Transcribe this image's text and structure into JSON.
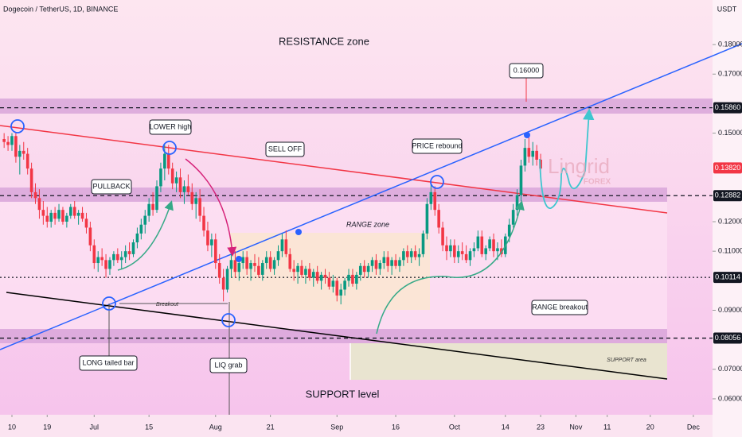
{
  "chart_data": {
    "type": "candlestick",
    "title": "Dogecoin / TetherUS, 1D, BINANCE",
    "currency": "USDT",
    "up_color": "#089981",
    "down_color": "#f23645",
    "xlim": [
      -3.05,
      178.9
    ],
    "ylim": [
      0.0546,
      0.1951
    ],
    "xticks": [
      {
        "value": 0,
        "label": "10"
      },
      {
        "value": 9,
        "label": "19"
      },
      {
        "value": 21,
        "label": "Jul"
      },
      {
        "value": 35,
        "label": "15"
      },
      {
        "value": 52,
        "label": "Aug"
      },
      {
        "value": 66,
        "label": "21"
      },
      {
        "value": 83,
        "label": "Sep"
      },
      {
        "value": 98,
        "label": "16"
      },
      {
        "value": 113,
        "label": "Oct"
      },
      {
        "value": 126,
        "label": "14"
      },
      {
        "value": 135,
        "label": "23"
      },
      {
        "value": 144,
        "label": "Nov"
      },
      {
        "value": 152,
        "label": "11"
      },
      {
        "value": 163,
        "label": "20"
      },
      {
        "value": 174,
        "label": "Dec"
      }
    ],
    "yticks": [
      {
        "value": 0.18,
        "label": "0.18000"
      },
      {
        "value": 0.17,
        "label": "0.17000"
      },
      {
        "value": 0.15,
        "label": "0.15000"
      },
      {
        "value": 0.12,
        "label": "0.12000"
      },
      {
        "value": 0.11,
        "label": "0.11000"
      },
      {
        "value": 0.09,
        "label": "0.09000"
      },
      {
        "value": 0.07,
        "label": "0.07000"
      },
      {
        "value": 0.06,
        "label": "0.06000"
      }
    ],
    "levels": [
      {
        "value": 0.1586,
        "label": "0.15860",
        "color": "#131722",
        "style": "dashed"
      },
      {
        "value": 0.1382,
        "label": "0.13820",
        "color": "#f23645",
        "style": "none"
      },
      {
        "value": 0.12882,
        "label": "0.12882",
        "color": "#131722",
        "style": "dashed"
      },
      {
        "value": 0.10114,
        "label": "0.10114",
        "color": "#131722",
        "style": "dotted"
      },
      {
        "value": 0.08056,
        "label": "0.08056",
        "color": "#131722",
        "style": "dashed"
      }
    ],
    "x": [
      -2,
      -1,
      0,
      1,
      2,
      3,
      4,
      5,
      6,
      7,
      8,
      9,
      10,
      11,
      12,
      13,
      14,
      15,
      16,
      17,
      18,
      19,
      20,
      21,
      22,
      23,
      24,
      25,
      26,
      27,
      28,
      29,
      30,
      31,
      32,
      33,
      34,
      35,
      36,
      37,
      38,
      39,
      40,
      41,
      42,
      43,
      44,
      45,
      46,
      47,
      48,
      49,
      50,
      51,
      52,
      53,
      54,
      55,
      56,
      57,
      58,
      59,
      60,
      61,
      62,
      63,
      64,
      65,
      66,
      67,
      68,
      69,
      70,
      71,
      72,
      73,
      74,
      75,
      76,
      77,
      78,
      79,
      80,
      81,
      82,
      83,
      84,
      85,
      86,
      87,
      88,
      89,
      90,
      91,
      92,
      93,
      94,
      95,
      96,
      97,
      98,
      99,
      100,
      101,
      102,
      103,
      104,
      105,
      106,
      107,
      108,
      109,
      110,
      111,
      112,
      113,
      114,
      115,
      116,
      117,
      118,
      119,
      120,
      121,
      122,
      123,
      124,
      125,
      126,
      127,
      128,
      129,
      130,
      131,
      132,
      133,
      134,
      135
    ],
    "candles": [
      [
        0.148,
        0.15,
        0.145,
        0.147
      ],
      [
        0.147,
        0.149,
        0.144,
        0.146
      ],
      [
        0.146,
        0.15,
        0.144,
        0.149
      ],
      [
        0.149,
        0.15,
        0.14,
        0.142
      ],
      [
        0.142,
        0.146,
        0.136,
        0.144
      ],
      [
        0.144,
        0.147,
        0.141,
        0.143
      ],
      [
        0.143,
        0.145,
        0.136,
        0.138
      ],
      [
        0.138,
        0.14,
        0.128,
        0.13
      ],
      [
        0.13,
        0.133,
        0.126,
        0.128
      ],
      [
        0.128,
        0.131,
        0.121,
        0.124
      ],
      [
        0.124,
        0.127,
        0.119,
        0.122
      ],
      [
        0.122,
        0.125,
        0.118,
        0.12
      ],
      [
        0.12,
        0.124,
        0.118,
        0.123
      ],
      [
        0.123,
        0.125,
        0.119,
        0.121
      ],
      [
        0.121,
        0.126,
        0.12,
        0.124
      ],
      [
        0.124,
        0.125,
        0.119,
        0.12
      ],
      [
        0.12,
        0.123,
        0.118,
        0.122
      ],
      [
        0.122,
        0.126,
        0.121,
        0.125
      ],
      [
        0.125,
        0.127,
        0.121,
        0.122
      ],
      [
        0.122,
        0.124,
        0.119,
        0.123
      ],
      [
        0.123,
        0.125,
        0.12,
        0.121
      ],
      [
        0.121,
        0.123,
        0.116,
        0.118
      ],
      [
        0.118,
        0.12,
        0.11,
        0.112
      ],
      [
        0.112,
        0.114,
        0.104,
        0.106
      ],
      [
        0.106,
        0.11,
        0.103,
        0.108
      ],
      [
        0.108,
        0.111,
        0.105,
        0.107
      ],
      [
        0.107,
        0.109,
        0.101,
        0.104
      ],
      [
        0.104,
        0.108,
        0.102,
        0.107
      ],
      [
        0.107,
        0.11,
        0.105,
        0.109
      ],
      [
        0.109,
        0.111,
        0.106,
        0.107
      ],
      [
        0.107,
        0.11,
        0.104,
        0.108
      ],
      [
        0.108,
        0.112,
        0.106,
        0.11
      ],
      [
        0.11,
        0.113,
        0.107,
        0.109
      ],
      [
        0.109,
        0.114,
        0.108,
        0.113
      ],
      [
        0.113,
        0.118,
        0.111,
        0.116
      ],
      [
        0.116,
        0.121,
        0.114,
        0.119
      ],
      [
        0.119,
        0.124,
        0.116,
        0.122
      ],
      [
        0.122,
        0.128,
        0.12,
        0.126
      ],
      [
        0.126,
        0.13,
        0.122,
        0.124
      ],
      [
        0.124,
        0.134,
        0.123,
        0.132
      ],
      [
        0.132,
        0.14,
        0.13,
        0.138
      ],
      [
        0.138,
        0.146,
        0.134,
        0.143
      ],
      [
        0.143,
        0.146,
        0.136,
        0.138
      ],
      [
        0.138,
        0.14,
        0.131,
        0.133
      ],
      [
        0.133,
        0.137,
        0.13,
        0.135
      ],
      [
        0.135,
        0.138,
        0.128,
        0.13
      ],
      [
        0.13,
        0.134,
        0.126,
        0.132
      ],
      [
        0.132,
        0.136,
        0.129,
        0.13
      ],
      [
        0.13,
        0.133,
        0.124,
        0.126
      ],
      [
        0.126,
        0.13,
        0.121,
        0.128
      ],
      [
        0.128,
        0.131,
        0.12,
        0.122
      ],
      [
        0.122,
        0.125,
        0.115,
        0.117
      ],
      [
        0.117,
        0.12,
        0.11,
        0.112
      ],
      [
        0.112,
        0.116,
        0.108,
        0.114
      ],
      [
        0.114,
        0.116,
        0.104,
        0.106
      ],
      [
        0.106,
        0.109,
        0.099,
        0.101
      ],
      [
        0.101,
        0.104,
        0.093,
        0.097
      ],
      [
        0.097,
        0.105,
        0.096,
        0.104
      ],
      [
        0.104,
        0.109,
        0.101,
        0.107
      ],
      [
        0.107,
        0.11,
        0.101,
        0.103
      ],
      [
        0.103,
        0.108,
        0.1,
        0.106
      ],
      [
        0.106,
        0.11,
        0.104,
        0.108
      ],
      [
        0.108,
        0.11,
        0.102,
        0.104
      ],
      [
        0.104,
        0.107,
        0.1,
        0.106
      ],
      [
        0.106,
        0.109,
        0.103,
        0.105
      ],
      [
        0.105,
        0.108,
        0.101,
        0.102
      ],
      [
        0.102,
        0.107,
        0.1,
        0.106
      ],
      [
        0.106,
        0.11,
        0.104,
        0.108
      ],
      [
        0.108,
        0.11,
        0.103,
        0.104
      ],
      [
        0.104,
        0.108,
        0.102,
        0.107
      ],
      [
        0.107,
        0.112,
        0.105,
        0.11
      ],
      [
        0.11,
        0.116,
        0.108,
        0.114
      ],
      [
        0.114,
        0.117,
        0.108,
        0.109
      ],
      [
        0.109,
        0.111,
        0.103,
        0.104
      ],
      [
        0.104,
        0.107,
        0.1,
        0.103
      ],
      [
        0.103,
        0.106,
        0.099,
        0.105
      ],
      [
        0.105,
        0.107,
        0.101,
        0.102
      ],
      [
        0.102,
        0.105,
        0.099,
        0.104
      ],
      [
        0.104,
        0.106,
        0.1,
        0.101
      ],
      [
        0.101,
        0.104,
        0.098,
        0.103
      ],
      [
        0.103,
        0.105,
        0.099,
        0.1
      ],
      [
        0.1,
        0.103,
        0.097,
        0.102
      ],
      [
        0.102,
        0.104,
        0.099,
        0.101
      ],
      [
        0.101,
        0.103,
        0.097,
        0.098
      ],
      [
        0.098,
        0.102,
        0.096,
        0.1
      ],
      [
        0.1,
        0.101,
        0.093,
        0.095
      ],
      [
        0.095,
        0.099,
        0.092,
        0.097
      ],
      [
        0.097,
        0.101,
        0.095,
        0.1
      ],
      [
        0.1,
        0.104,
        0.098,
        0.102
      ],
      [
        0.102,
        0.104,
        0.098,
        0.099
      ],
      [
        0.099,
        0.103,
        0.097,
        0.102
      ],
      [
        0.102,
        0.106,
        0.1,
        0.105
      ],
      [
        0.105,
        0.107,
        0.101,
        0.103
      ],
      [
        0.103,
        0.106,
        0.101,
        0.105
      ],
      [
        0.105,
        0.108,
        0.103,
        0.107
      ],
      [
        0.107,
        0.109,
        0.102,
        0.104
      ],
      [
        0.104,
        0.107,
        0.102,
        0.106
      ],
      [
        0.106,
        0.11,
        0.104,
        0.108
      ],
      [
        0.108,
        0.11,
        0.103,
        0.105
      ],
      [
        0.105,
        0.108,
        0.102,
        0.107
      ],
      [
        0.107,
        0.109,
        0.104,
        0.105
      ],
      [
        0.105,
        0.108,
        0.103,
        0.107
      ],
      [
        0.107,
        0.111,
        0.105,
        0.11
      ],
      [
        0.11,
        0.112,
        0.106,
        0.108
      ],
      [
        0.108,
        0.111,
        0.106,
        0.11
      ],
      [
        0.11,
        0.112,
        0.107,
        0.108
      ],
      [
        0.108,
        0.111,
        0.105,
        0.109
      ],
      [
        0.109,
        0.117,
        0.108,
        0.116
      ],
      [
        0.116,
        0.128,
        0.114,
        0.126
      ],
      [
        0.126,
        0.133,
        0.124,
        0.13
      ],
      [
        0.13,
        0.132,
        0.122,
        0.124
      ],
      [
        0.124,
        0.126,
        0.116,
        0.118
      ],
      [
        0.118,
        0.12,
        0.11,
        0.112
      ],
      [
        0.112,
        0.115,
        0.107,
        0.11
      ],
      [
        0.11,
        0.114,
        0.108,
        0.112
      ],
      [
        0.112,
        0.114,
        0.106,
        0.108
      ],
      [
        0.108,
        0.112,
        0.106,
        0.11
      ],
      [
        0.11,
        0.113,
        0.107,
        0.109
      ],
      [
        0.109,
        0.112,
        0.106,
        0.107
      ],
      [
        0.107,
        0.111,
        0.105,
        0.11
      ],
      [
        0.11,
        0.113,
        0.108,
        0.111
      ],
      [
        0.111,
        0.117,
        0.11,
        0.115
      ],
      [
        0.115,
        0.117,
        0.108,
        0.109
      ],
      [
        0.109,
        0.112,
        0.107,
        0.111
      ],
      [
        0.111,
        0.115,
        0.11,
        0.114
      ],
      [
        0.114,
        0.116,
        0.108,
        0.11
      ],
      [
        0.11,
        0.113,
        0.107,
        0.111
      ],
      [
        0.111,
        0.114,
        0.108,
        0.109
      ],
      [
        0.109,
        0.116,
        0.108,
        0.115
      ],
      [
        0.115,
        0.121,
        0.113,
        0.119
      ],
      [
        0.119,
        0.126,
        0.118,
        0.124
      ],
      [
        0.124,
        0.131,
        0.122,
        0.129
      ],
      [
        0.129,
        0.141,
        0.127,
        0.139
      ],
      [
        0.139,
        0.148,
        0.137,
        0.145
      ],
      [
        0.145,
        0.149,
        0.14,
        0.142
      ],
      [
        0.142,
        0.147,
        0.139,
        0.144
      ],
      [
        0.144,
        0.146,
        0.139,
        0.141
      ],
      [
        0.141,
        0.143,
        0.136,
        0.138
      ]
    ],
    "annotations": {
      "resistance": "RESISTANCE zone",
      "target": "0.16000",
      "lower_high": "LOWER high",
      "sell_off": "SELL OFF",
      "price_rebound": "PRICE rebound",
      "pullback": "PULLBACK",
      "range_zone": "RANGE zone",
      "breakout": "Breakout",
      "long_tailed": "LONG tailed bar",
      "liq_grab": "LIQ grab",
      "support_level": "SUPPORT level",
      "range_breakout": "RANGE breakout",
      "support_area": "SUPPORT area",
      "brand": "Lingrid",
      "brand_sub": "FOREX"
    }
  }
}
